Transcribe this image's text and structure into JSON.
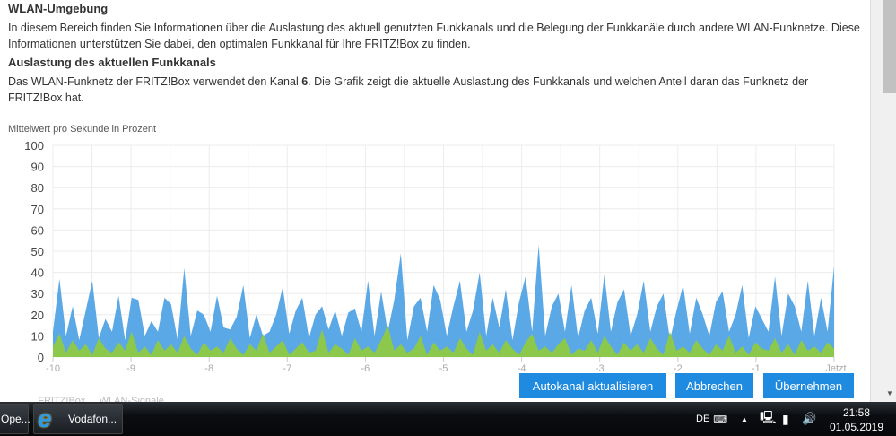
{
  "section_title": "WLAN-Umgebung",
  "intro": "In diesem Bereich finden Sie Informationen über die Auslastung des aktuell genutzten Funkkanals und die Belegung der Funkkanäle durch andere WLAN-Funknetze. Diese Informationen unterstützen Sie dabei, den optimalen Funkkanal für Ihre FRITZ!Box zu finden.",
  "subtitle": "Auslastung des aktuellen Funkkanals",
  "desc_before": "Das WLAN-Funknetz der FRITZ!Box verwendet den Kanal ",
  "channel": "6",
  "desc_after": ". Die Grafik zeigt die aktuelle Auslastung des Funkkanals und welchen Anteil daran das Funknetz der FRITZ!Box hat.",
  "chart_data": {
    "type": "area",
    "ylabel": "Mittelwert pro Sekunde in Prozent",
    "ylim": [
      0,
      100
    ],
    "yticks": [
      "0",
      "10",
      "20",
      "30",
      "40",
      "50",
      "60",
      "70",
      "80",
      "90",
      "100"
    ],
    "xlim": [
      -10,
      0
    ],
    "xticks": [
      "-10",
      "-9",
      "-8",
      "-7",
      "-6",
      "-5",
      "-4",
      "-3",
      "-2",
      "-1",
      "Jetzt"
    ],
    "grid": true,
    "colors": {
      "total": "#5aa8e6",
      "fritzbox": "#8cc84b"
    },
    "series": [
      {
        "values": [
          12,
          37,
          10,
          24,
          8,
          22,
          36,
          9,
          18,
          12,
          29,
          8,
          28,
          27,
          10,
          17,
          12,
          28,
          25,
          8,
          42,
          10,
          22,
          20,
          12,
          29,
          14,
          13,
          19,
          34,
          9,
          20,
          10,
          12,
          20,
          33,
          11,
          22,
          28,
          9,
          20,
          24,
          13,
          22,
          10,
          21,
          23,
          12,
          36,
          10,
          31,
          12,
          27,
          49,
          8,
          24,
          28,
          12,
          34,
          27,
          10,
          24,
          36,
          12,
          22,
          40,
          10,
          28,
          14,
          32,
          8,
          26,
          38,
          12,
          53,
          10,
          24,
          30,
          12,
          34,
          9,
          22,
          28,
          11,
          39,
          12,
          26,
          32,
          10,
          20,
          36,
          12,
          24,
          30,
          8,
          22,
          34,
          11,
          28,
          20,
          10,
          26,
          31,
          12,
          20,
          34,
          9,
          24,
          18,
          12,
          38,
          10,
          30,
          24,
          12,
          36,
          10,
          28,
          12,
          43
        ]
      },
      {
        "values": [
          5,
          11,
          2,
          8,
          3,
          6,
          1,
          9,
          4,
          2,
          7,
          3,
          12,
          2,
          5,
          1,
          8,
          3,
          6,
          2,
          10,
          4,
          1,
          7,
          3,
          5,
          2,
          9,
          4,
          1,
          6,
          3,
          11,
          2,
          5,
          8,
          1,
          4,
          7,
          2,
          3,
          13,
          2,
          6,
          4,
          1,
          9,
          3,
          5,
          2,
          8,
          15,
          3,
          6,
          2,
          4,
          10,
          1,
          7,
          3,
          5,
          2,
          9,
          4,
          1,
          12,
          3,
          6,
          2,
          8,
          4,
          1,
          7,
          11,
          3,
          5,
          2,
          6,
          9,
          1,
          4,
          3,
          8,
          2,
          10,
          5,
          1,
          7,
          3,
          6,
          2,
          9,
          4,
          1,
          12,
          3,
          5,
          2,
          8,
          4,
          1,
          6,
          3,
          10,
          2,
          5,
          1,
          7,
          4,
          3,
          9,
          2,
          6,
          1,
          8,
          3,
          5,
          2,
          7,
          4
        ]
      }
    ]
  },
  "buttons": {
    "autochannel": "Autokanal aktualisieren",
    "cancel": "Abbrechen",
    "apply": "Übernehmen"
  },
  "behind_text": "... FRITZ!Box ... WLAN-Signale",
  "taskbar": {
    "item1": "Ope...",
    "item2": "Vodafon...",
    "lang": "DE",
    "time": "21:58",
    "date": "01.05.2019"
  }
}
